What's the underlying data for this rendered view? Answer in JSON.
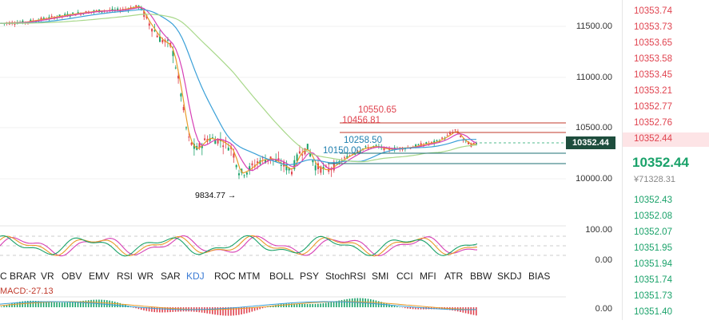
{
  "price_axis": [
    "11500.00",
    "11000.00",
    "10500.00",
    "10000.00"
  ],
  "osc_axis": [
    "100.00",
    "0.00"
  ],
  "macd_axis": [
    "0.00"
  ],
  "current_price_tag": "10352.44",
  "annotations": {
    "high1": "10550.65",
    "high2": "10456.81",
    "level1": "10258.50",
    "level2": "10150.00",
    "low": "9834.77 →"
  },
  "tabs": [
    "C",
    "BRAR",
    "VR",
    "OBV",
    "EMV",
    "RSI",
    "WR",
    "SAR",
    "KDJ",
    "ROC",
    "MTM",
    "BOLL",
    "PSY",
    "StochRSI",
    "SMI",
    "CCI",
    "MFI",
    "ATR",
    "BBW",
    "SKDJ",
    "BIAS"
  ],
  "active_tab": "KDJ",
  "macd_label": "MACD:-27.13",
  "order_book": {
    "asks": [
      "10353.74",
      "10353.73",
      "10353.65",
      "10353.58",
      "10353.45",
      "10353.21",
      "10352.77",
      "10352.76",
      "10352.44"
    ],
    "last_price": "10352.44",
    "fiat_value": "¥71328.31",
    "bids": [
      "10352.43",
      "10352.08",
      "10352.07",
      "10351.95",
      "10351.94",
      "10351.74",
      "10351.73",
      "10351.40"
    ]
  },
  "colors": {
    "up": "#1aa26a",
    "down": "#e0434f",
    "ma_magenta": "#d63fb5",
    "ma_blue": "#3aa0d8",
    "ma_green": "#a8d88a",
    "ma_orange": "#e89b2a",
    "level_red": "#c0392b",
    "level_teal": "#1e6f73"
  }
}
